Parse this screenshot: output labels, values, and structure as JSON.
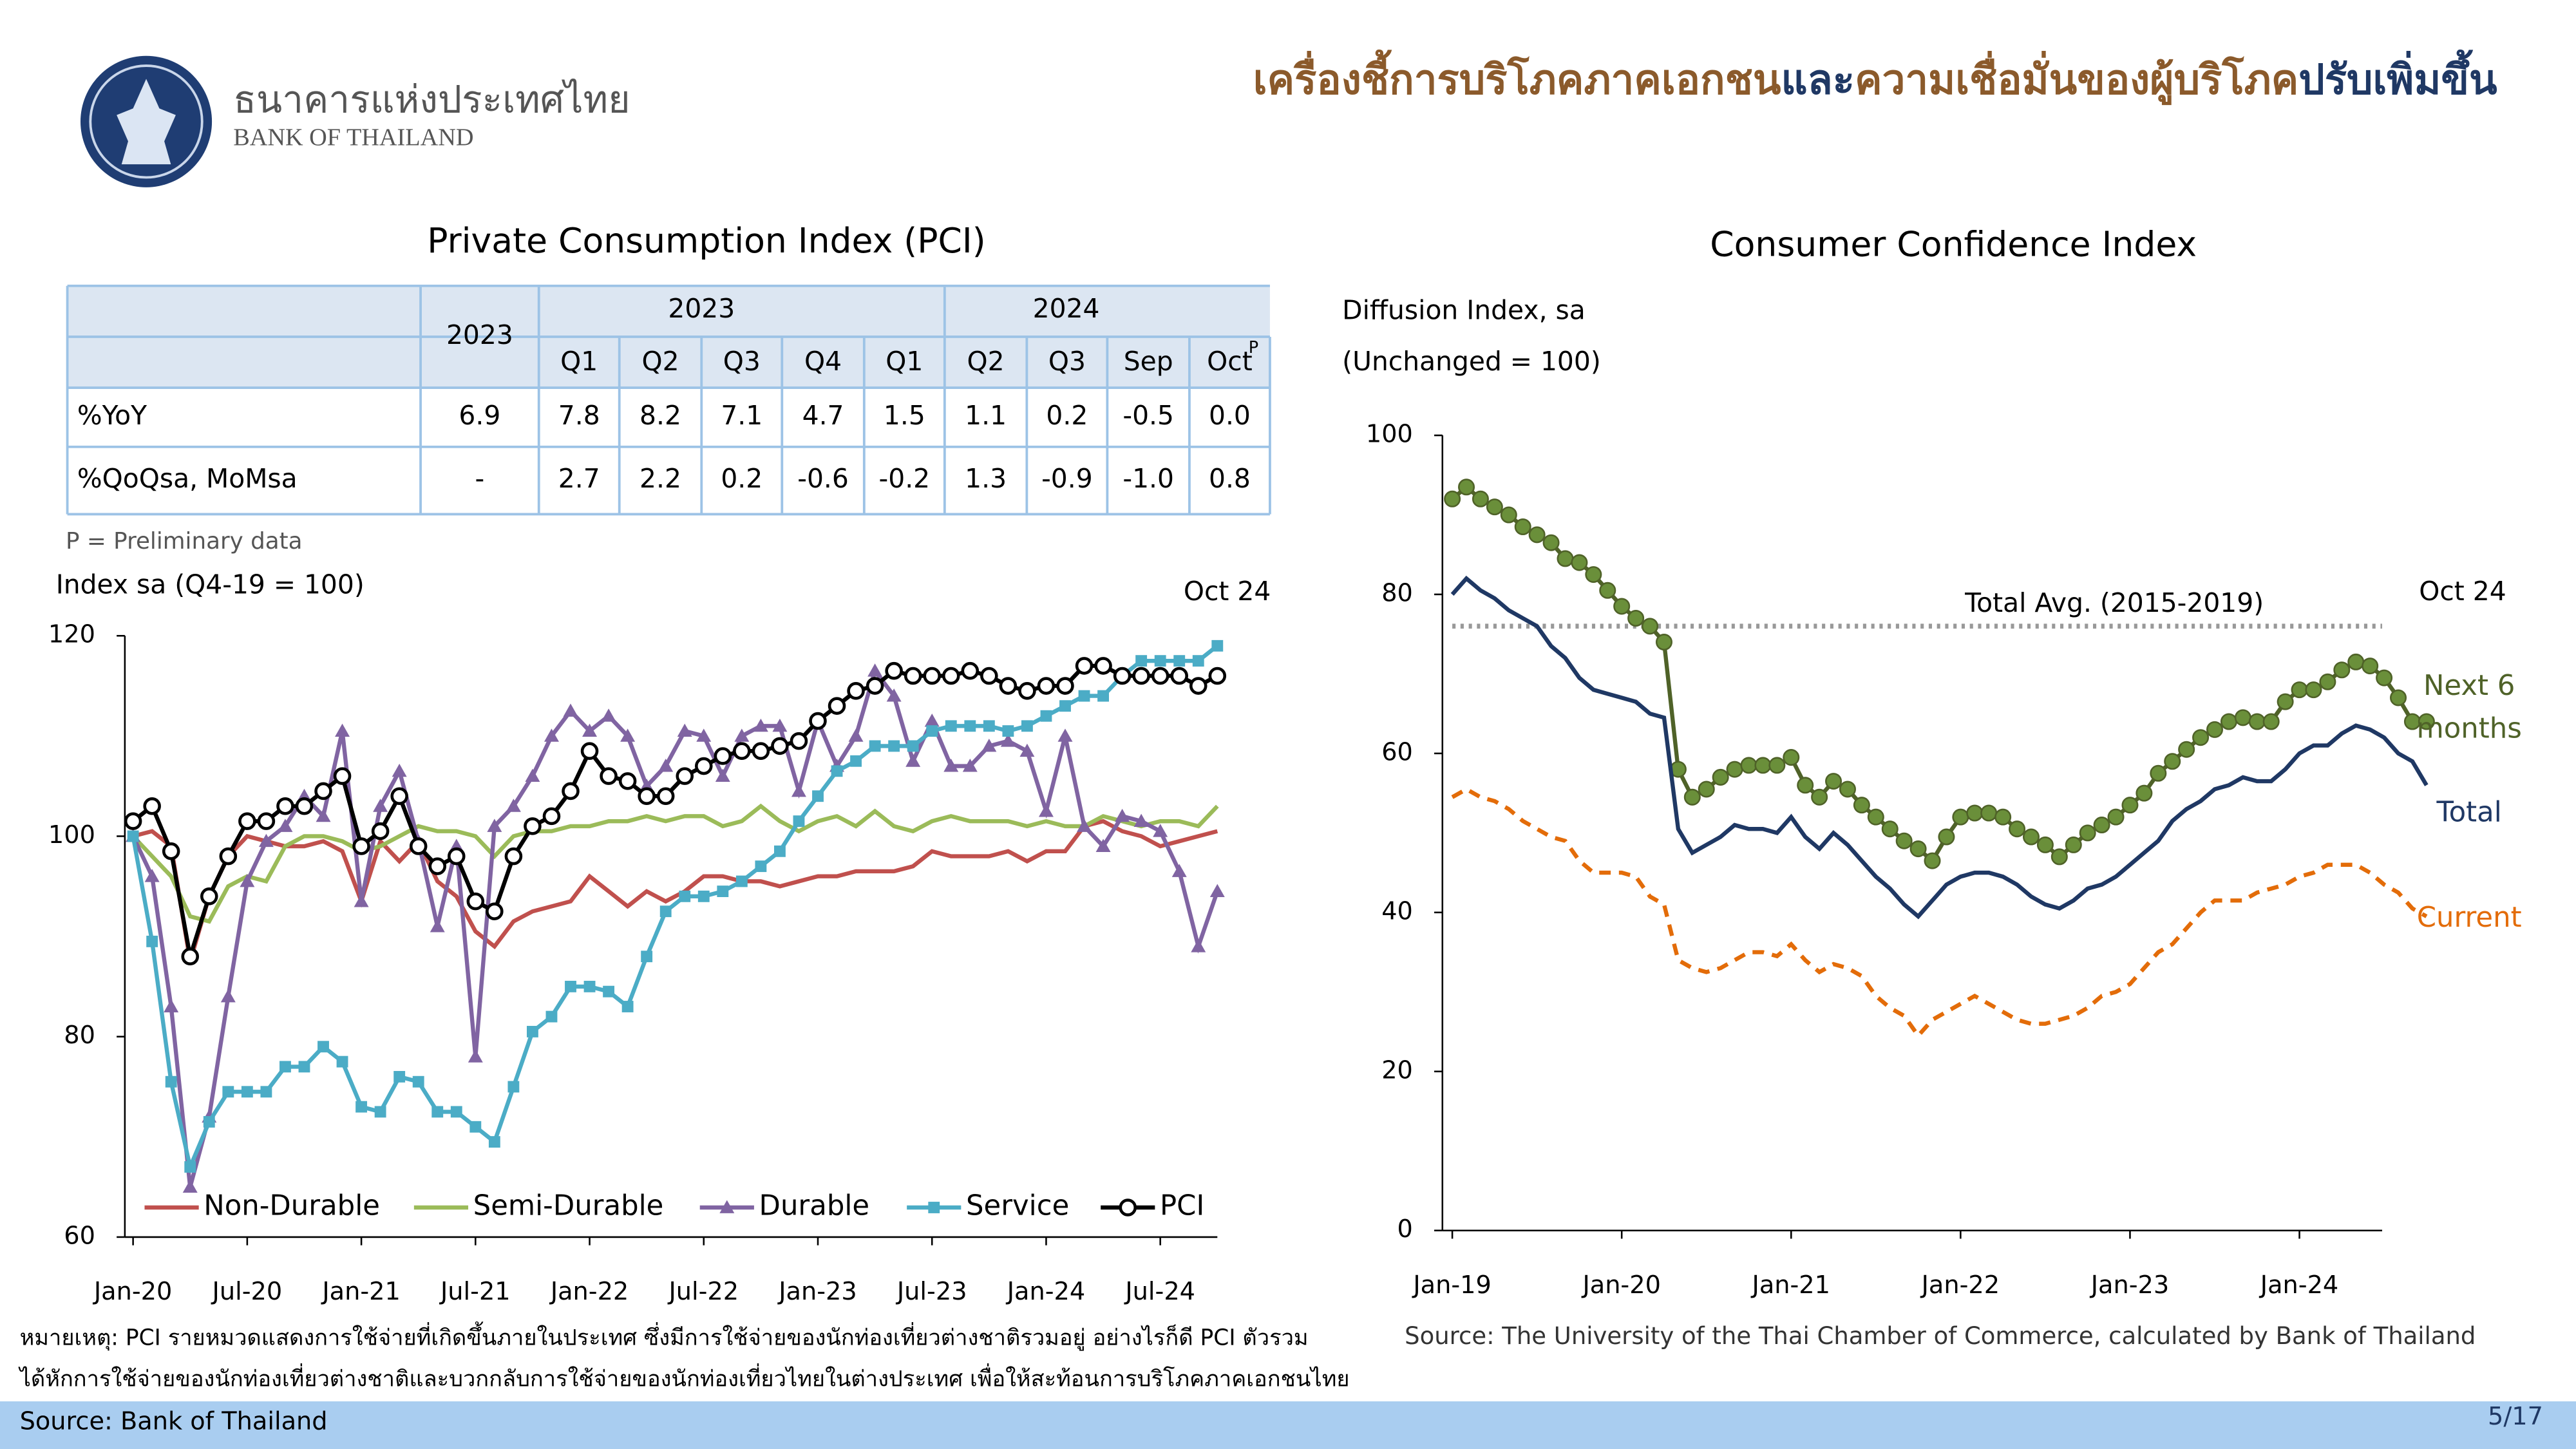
{
  "header": {
    "bank_th": "ธนาคารแห่งประเทศไทย",
    "bank_en": "BANK OF THAILAND",
    "title_parts": [
      {
        "text": "เครื่องชี้การบริโภคภาคเอกชน",
        "color": "#8b5a2b"
      },
      {
        "text": "และ",
        "color": "#1f3864"
      },
      {
        "text": "ความเชื่อมั่นของผู้บริโภค",
        "color": "#8b5a2b"
      },
      {
        "text": "ปรับเพิ่มขึ้น",
        "color": "#1f3864"
      }
    ]
  },
  "table": {
    "annual": "2023",
    "years": [
      "2023",
      "2024"
    ],
    "columns": [
      "Q1",
      "Q2",
      "Q3",
      "Q4",
      "Q1",
      "Q2",
      "Q3",
      "Sep",
      "Oct"
    ],
    "superscript": "P",
    "rows": [
      [
        "%YoY",
        "6.9",
        "7.8",
        "8.2",
        "7.1",
        "4.7",
        "1.5",
        "1.1",
        "0.2",
        "-0.5",
        "0.0"
      ],
      [
        "%QoQsa, MoMsa",
        "-",
        "2.7",
        "2.2",
        "0.2",
        "-0.6",
        "-0.2",
        "1.3",
        "-0.9",
        "-1.0",
        "0.8"
      ]
    ],
    "note": "P = Preliminary data"
  },
  "chart_data": [
    {
      "type": "line",
      "title": "Private Consumption Index (PCI)",
      "y_label": "Index sa (Q4-19 = 100)",
      "annotation": "Oct 24",
      "categories": [
        "Jan-20",
        null,
        null,
        null,
        null,
        null,
        "Jul-20",
        null,
        null,
        null,
        null,
        null,
        "Jan-21",
        null,
        null,
        null,
        null,
        null,
        "Jul-21",
        null,
        null,
        null,
        null,
        null,
        "Jan-22",
        null,
        null,
        null,
        null,
        null,
        "Jul-22",
        null,
        null,
        null,
        null,
        null,
        "Jan-23",
        null,
        null,
        null,
        null,
        null,
        "Jul-23",
        null,
        null,
        null,
        null,
        null,
        "Jan-24",
        null,
        null,
        null,
        null,
        null,
        "Jul-24",
        null,
        null,
        null
      ],
      "ylim": [
        60,
        120
      ],
      "yticks": [
        60,
        80,
        100,
        120
      ],
      "series": [
        {
          "name": "Non-Durable",
          "color": "#c0504d",
          "marker": "none",
          "values": [
            100,
            100.5,
            99,
            87.5,
            94,
            98,
            100,
            99.5,
            99,
            99,
            99.5,
            98.5,
            93.5,
            99.5,
            97.5,
            99.5,
            95.5,
            94,
            90.5,
            89,
            91.5,
            92.5,
            93,
            93.5,
            96,
            94.5,
            93,
            94.5,
            93.5,
            94.5,
            96,
            96,
            95.5,
            95.5,
            95,
            95.5,
            96,
            96,
            96.5,
            96.5,
            96.5,
            97,
            98.5,
            98,
            98,
            98,
            98.5,
            97.5,
            98.5,
            98.5,
            101,
            101.5,
            100.5,
            100,
            99,
            99.5,
            100,
            100.5
          ]
        },
        {
          "name": "Semi-Durable",
          "color": "#9bbb59",
          "marker": "none",
          "values": [
            100,
            98,
            96,
            92,
            91.5,
            95,
            96,
            95.5,
            99,
            100,
            100,
            99.5,
            98.5,
            99,
            100,
            101,
            100.5,
            100.5,
            100,
            98,
            100,
            100.5,
            100.5,
            101,
            101,
            101.5,
            101.5,
            102,
            101.5,
            102,
            102,
            101,
            101.5,
            103,
            101.5,
            100.5,
            101.5,
            102,
            101,
            102.5,
            101,
            100.5,
            101.5,
            102,
            101.5,
            101.5,
            101.5,
            101,
            101.5,
            101,
            101,
            102,
            101.5,
            101,
            101.5,
            101.5,
            101,
            103
          ]
        },
        {
          "name": "Durable",
          "color": "#8064a2",
          "marker": "triangle",
          "values": [
            100,
            96,
            83,
            65,
            72,
            84,
            95.5,
            99.5,
            101,
            104,
            102,
            110.5,
            93.5,
            103,
            106.5,
            99.5,
            91,
            99,
            78,
            101,
            103,
            106,
            110,
            112.5,
            110.5,
            112,
            110,
            105,
            107,
            110.5,
            110,
            106,
            110,
            111,
            111,
            104.5,
            111.5,
            107,
            110,
            116.5,
            114,
            107.5,
            111.5,
            107,
            107,
            109,
            109.5,
            108.5,
            102.5,
            110,
            101,
            99,
            102,
            101.5,
            100.5,
            96.5,
            89,
            94.5
          ]
        },
        {
          "name": "Service",
          "color": "#4bacc6",
          "marker": "square",
          "values": [
            100,
            89.5,
            75.5,
            67,
            71.5,
            74.5,
            74.5,
            74.5,
            77,
            77,
            79,
            77.5,
            73,
            72.5,
            76,
            75.5,
            72.5,
            72.5,
            71,
            69.5,
            75,
            80.5,
            82,
            85,
            85,
            84.5,
            83,
            88,
            92.5,
            94,
            94,
            94.5,
            95.5,
            97,
            98.5,
            101.5,
            104,
            106.5,
            107.5,
            109,
            109,
            109,
            110.5,
            111,
            111,
            111,
            110.5,
            111,
            112,
            113,
            114,
            114,
            116,
            117.5,
            117.5,
            117.5,
            117.5,
            119
          ]
        },
        {
          "name": "PCI",
          "color": "#000000",
          "marker": "circle",
          "values": [
            101.5,
            103,
            98.5,
            88,
            94,
            98,
            101.5,
            101.5,
            103,
            103,
            104.5,
            106,
            99,
            100.5,
            104,
            99,
            97,
            98,
            93.5,
            92.5,
            98,
            101,
            102,
            104.5,
            108.5,
            106,
            105.5,
            104,
            104,
            106,
            107,
            108,
            108.5,
            108.5,
            109,
            109.5,
            111.5,
            113,
            114.5,
            115,
            116.5,
            116,
            116,
            116,
            116.5,
            116,
            115,
            114.5,
            115,
            115,
            117,
            117,
            116,
            116,
            116,
            116,
            115,
            116
          ]
        }
      ]
    },
    {
      "type": "line",
      "title": "Consumer Confidence Index",
      "y_label": [
        "Diffusion Index, sa",
        "(Unchanged = 100)"
      ],
      "annotation": "Oct 24",
      "categories": [
        "Jan-19",
        null,
        null,
        null,
        null,
        null,
        null,
        null,
        null,
        null,
        null,
        null,
        "Jan-20",
        null,
        null,
        null,
        null,
        null,
        null,
        null,
        null,
        null,
        null,
        null,
        "Jan-21",
        null,
        null,
        null,
        null,
        null,
        null,
        null,
        null,
        null,
        null,
        null,
        "Jan-22",
        null,
        null,
        null,
        null,
        null,
        null,
        null,
        null,
        null,
        null,
        null,
        "Jan-23",
        null,
        null,
        null,
        null,
        null,
        null,
        null,
        null,
        null,
        null,
        null,
        "Jan-24",
        null,
        null,
        null,
        null,
        null,
        null,
        null,
        null,
        null
      ],
      "ylim": [
        0,
        100
      ],
      "yticks": [
        0,
        20,
        40,
        60,
        80,
        100
      ],
      "reference_line": {
        "value": 76,
        "label": "Total Avg. (2015-2019)",
        "color": "#999999"
      },
      "series": [
        {
          "name": "Next 6 months",
          "color": "#4f6228",
          "marker": "dot",
          "values": [
            92,
            93.5,
            92,
            91,
            90,
            88.5,
            87.5,
            86.5,
            84.5,
            84,
            82.5,
            80.5,
            78.5,
            77,
            76,
            74,
            58,
            54.5,
            55.5,
            57,
            58,
            58.5,
            58.5,
            58.5,
            59.5,
            56,
            54.5,
            56.5,
            55.5,
            53.5,
            52,
            50.5,
            49,
            48,
            46.5,
            49.5,
            52,
            52.5,
            52.5,
            52,
            50.5,
            49.5,
            48.5,
            47,
            48.5,
            50,
            51,
            52,
            53.5,
            55,
            57.5,
            59,
            60.5,
            62,
            63,
            64,
            64.5,
            64,
            64,
            66.5,
            68,
            68,
            69,
            70.5,
            71.5,
            71,
            69.5,
            67,
            64,
            64
          ]
        },
        {
          "name": "Total",
          "color": "#1f3864",
          "marker": "none",
          "values": [
            80,
            82,
            80.5,
            79.5,
            78,
            77,
            76,
            73.5,
            72,
            69.5,
            68,
            67.5,
            67,
            66.5,
            65,
            64.5,
            50.5,
            47.5,
            48.5,
            49.5,
            51,
            50.5,
            50.5,
            50,
            52,
            49.5,
            48,
            50,
            48.5,
            46.5,
            44.5,
            43,
            41,
            39.5,
            41.5,
            43.5,
            44.5,
            45,
            45,
            44.5,
            43.5,
            42,
            41,
            40.5,
            41.5,
            43,
            43.5,
            44.5,
            46,
            47.5,
            49,
            51.5,
            53,
            54,
            55.5,
            56,
            57,
            56.5,
            56.5,
            58,
            60,
            61,
            61,
            62.5,
            63.5,
            63,
            62,
            60,
            59,
            56
          ]
        },
        {
          "name": "Current",
          "color": "#e36c09",
          "marker": "none",
          "dash": true,
          "values": [
            54.5,
            55.5,
            54.5,
            54,
            53,
            51.5,
            50.5,
            49.5,
            49,
            46.5,
            45,
            45,
            45,
            44.5,
            42,
            41,
            34,
            33,
            32.5,
            33,
            34,
            35,
            35,
            34.5,
            36,
            34,
            32.5,
            33.5,
            33,
            32,
            29.5,
            28,
            27,
            24.5,
            26.5,
            27.5,
            28.5,
            29.5,
            28.5,
            27.5,
            26.5,
            26,
            26,
            26.5,
            27,
            28,
            29.5,
            30,
            31,
            33,
            35,
            36,
            38,
            40,
            41.5,
            41.5,
            41.5,
            42.5,
            43,
            43.5,
            44.5,
            45,
            46,
            46,
            46,
            45,
            43.5,
            42.5,
            40.5,
            39.5
          ]
        }
      ]
    }
  ],
  "notes": [
    "หมายเหตุ: PCI รายหมวดแสดงการใช้จ่ายที่เกิดขึ้นภายในประเทศ ซึ่งมีการใช้จ่ายของนักท่องเที่ยวต่างชาติรวมอยู่ อย่างไรก็ดี PCI ตัวรวม",
    "ได้หักการใช้จ่ายของนักท่องเที่ยวต่างชาติและบวกกลับการใช้จ่ายของนักท่องเที่ยวไทยในต่างประเทศ เพื่อให้สะท้อนการบริโภคภาคเอกชนไทย"
  ],
  "cci_source": "Source:  The University of the Thai Chamber of Commerce, calculated by Bank of Thailand",
  "footer": {
    "source": "Source: Bank of Thailand",
    "page": "5/17"
  }
}
